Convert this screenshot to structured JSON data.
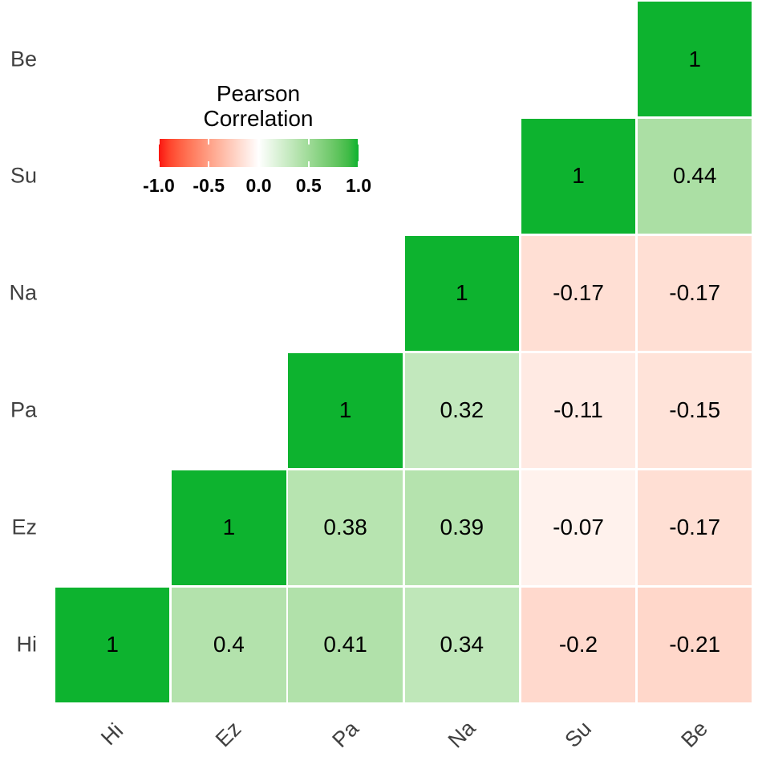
{
  "chart_data": {
    "type": "heatmap",
    "title": "Pearson Correlation",
    "triangle": "upper-right-staircase",
    "x_labels": [
      "Hi",
      "Ez",
      "Pa",
      "Na",
      "Su",
      "Be"
    ],
    "y_labels_top_to_bottom": [
      "Be",
      "Su",
      "Na",
      "Pa",
      "Ez",
      "Hi"
    ],
    "legend": {
      "title_lines": [
        "Pearson",
        "Correlation"
      ],
      "ticks": [
        "-1.0",
        "-0.5",
        "0.0",
        "0.5",
        "1.0"
      ],
      "range": [
        -1,
        1
      ]
    },
    "colors": {
      "negative_end": "#fa1510",
      "midpoint": "#ffffff",
      "positive_end": "#0db32f",
      "cell_text": "#000000",
      "axis_text": "#404040"
    },
    "cells": [
      {
        "row": "Be",
        "col": "Be",
        "value": 1,
        "label": "1"
      },
      {
        "row": "Su",
        "col": "Su",
        "value": 1,
        "label": "1"
      },
      {
        "row": "Su",
        "col": "Be",
        "value": 0.44,
        "label": "0.44"
      },
      {
        "row": "Na",
        "col": "Na",
        "value": 1,
        "label": "1"
      },
      {
        "row": "Na",
        "col": "Su",
        "value": -0.17,
        "label": "-0.17"
      },
      {
        "row": "Na",
        "col": "Be",
        "value": -0.17,
        "label": "-0.17"
      },
      {
        "row": "Pa",
        "col": "Pa",
        "value": 1,
        "label": "1"
      },
      {
        "row": "Pa",
        "col": "Na",
        "value": 0.32,
        "label": "0.32"
      },
      {
        "row": "Pa",
        "col": "Su",
        "value": -0.11,
        "label": "-0.11"
      },
      {
        "row": "Pa",
        "col": "Be",
        "value": -0.15,
        "label": "-0.15"
      },
      {
        "row": "Ez",
        "col": "Ez",
        "value": 1,
        "label": "1"
      },
      {
        "row": "Ez",
        "col": "Pa",
        "value": 0.38,
        "label": "0.38"
      },
      {
        "row": "Ez",
        "col": "Na",
        "value": 0.39,
        "label": "0.39"
      },
      {
        "row": "Ez",
        "col": "Su",
        "value": -0.07,
        "label": "-0.07"
      },
      {
        "row": "Ez",
        "col": "Be",
        "value": -0.17,
        "label": "-0.17"
      },
      {
        "row": "Hi",
        "col": "Hi",
        "value": 1,
        "label": "1"
      },
      {
        "row": "Hi",
        "col": "Ez",
        "value": 0.4,
        "label": "0.4"
      },
      {
        "row": "Hi",
        "col": "Pa",
        "value": 0.41,
        "label": "0.41"
      },
      {
        "row": "Hi",
        "col": "Na",
        "value": 0.34,
        "label": "0.34"
      },
      {
        "row": "Hi",
        "col": "Su",
        "value": -0.2,
        "label": "-0.2"
      },
      {
        "row": "Hi",
        "col": "Be",
        "value": -0.21,
        "label": "-0.21"
      }
    ]
  }
}
